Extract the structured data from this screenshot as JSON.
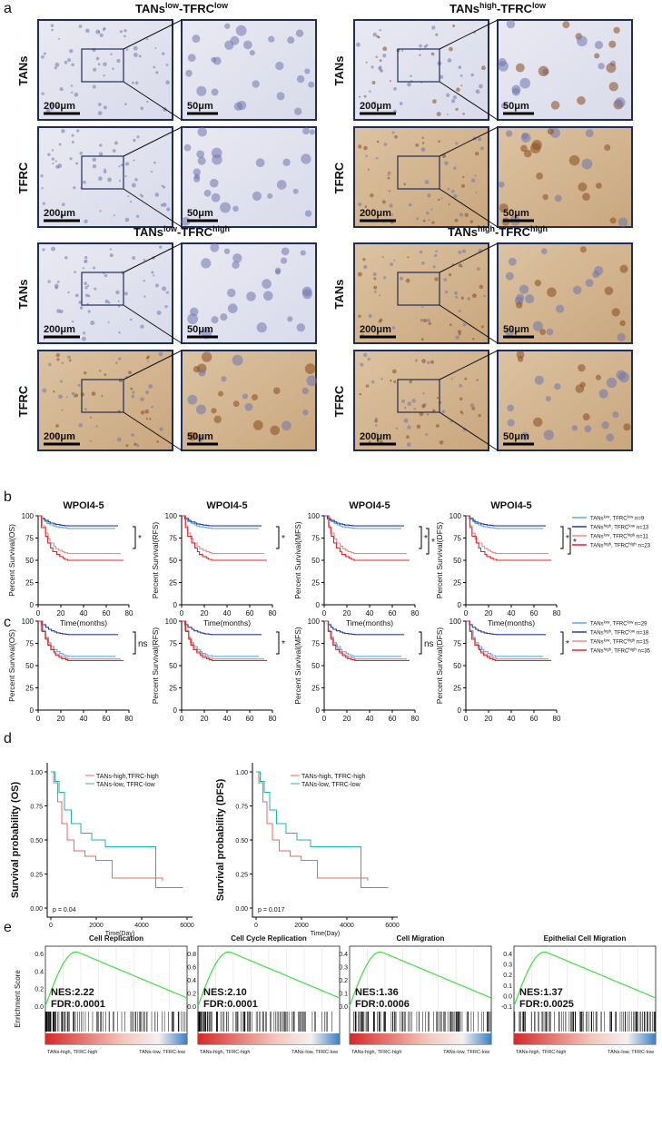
{
  "panel_a": {
    "label": "a",
    "groups": [
      {
        "title_parts": [
          "TANs",
          "low",
          "-TFRC",
          "low"
        ],
        "rows": [
          {
            "label": "TANs",
            "scale_low": "200μm",
            "scale_high": "50μm"
          },
          {
            "label": "TFRC",
            "scale_low": "200μm",
            "scale_high": "50μm"
          }
        ]
      },
      {
        "title_parts": [
          "TANs",
          "high",
          "-TFRC",
          "low"
        ],
        "rows": [
          {
            "label": "TANs",
            "scale_low": "200μm",
            "scale_high": "50μm"
          },
          {
            "label": "TFRC",
            "scale_low": "200μm",
            "scale_high": "50μm"
          }
        ]
      },
      {
        "title_parts": [
          "TANs",
          "low",
          "-TFRC",
          "high"
        ],
        "rows": [
          {
            "label": "TANs",
            "scale_low": "200μm",
            "scale_high": "50μm"
          },
          {
            "label": "TFRC",
            "scale_low": "200μm",
            "scale_high": "50μm"
          }
        ]
      },
      {
        "title_parts": [
          "TANs",
          "high",
          "-TFRC",
          "high"
        ],
        "rows": [
          {
            "label": "TANs",
            "scale_low": "200μm",
            "scale_high": "50μm"
          },
          {
            "label": "TFRC",
            "scale_low": "200μm",
            "scale_high": "50μm"
          }
        ]
      }
    ]
  },
  "panel_b": {
    "label": "b",
    "yticks": [
      0,
      25,
      50,
      75,
      100
    ],
    "xticks": [
      0,
      20,
      40,
      60,
      80
    ],
    "xlabel": "Time(months)",
    "plots": [
      {
        "title": "WPOI4-5",
        "ylabel": "Percent Survival(OS)",
        "sig": [
          "*"
        ]
      },
      {
        "title": "WPOI4-5",
        "ylabel": "Percent Survival(RFS)",
        "sig": [
          "*"
        ]
      },
      {
        "title": "WPOI4-5",
        "ylabel": "Percent Survival(MFS)",
        "sig": [
          "*",
          "*"
        ]
      },
      {
        "title": "WPOI4-5",
        "ylabel": "Percent Survival(DFS)",
        "sig": [
          "*",
          "*"
        ]
      }
    ],
    "legend": [
      {
        "a": "TANs",
        "as": "low",
        "b": ", TFRC",
        "bs": "low",
        "n": " n=9"
      },
      {
        "a": "TANs",
        "as": "high",
        "b": ", TFRC",
        "bs": "low",
        "n": " n=13"
      },
      {
        "a": "TANs",
        "as": "low",
        "b": ", TFRC",
        "bs": "high",
        "n": " n=11"
      },
      {
        "a": "TANs",
        "as": "high",
        "b": ", TFRC",
        "bs": "high",
        "n": " n=23"
      }
    ]
  },
  "panel_c": {
    "label": "c",
    "yticks": [
      0,
      25,
      50,
      75,
      100
    ],
    "xticks": [
      0,
      20,
      40,
      60,
      80
    ],
    "plots": [
      {
        "ylabel": "Percent Survival(OS)",
        "sig": [
          "ns"
        ]
      },
      {
        "ylabel": "Percent Survival(RFS)",
        "sig": [
          "*"
        ]
      },
      {
        "ylabel": "Percent Survival(MFS)",
        "sig": [
          "ns"
        ]
      },
      {
        "ylabel": "Percent Survival(DFS)",
        "sig": [
          "*"
        ]
      }
    ],
    "legend": [
      {
        "a": "TANs",
        "as": "low",
        "b": ", TFRC",
        "bs": "low",
        "n": " n=29"
      },
      {
        "a": "TANs",
        "as": "high",
        "b": ", TFRC",
        "bs": "low",
        "n": " n=18"
      },
      {
        "a": "TANs",
        "as": "low",
        "b": ", TFRC",
        "bs": "high",
        "n": " n=15"
      },
      {
        "a": "TANs",
        "as": "high",
        "b": ", TFRC",
        "bs": "high",
        "n": " n=35"
      }
    ]
  },
  "panel_d": {
    "label": "d",
    "yticks": [
      "0.00",
      "0.25",
      "0.50",
      "0.75",
      "1.00"
    ],
    "xticks": [
      0,
      2000,
      4000,
      6000
    ],
    "xlabel": "Time(Day)",
    "plots": [
      {
        "ylabel": "Survival probability (OS)",
        "p": "p = 0.04",
        "legend": [
          "TANs-high,TFRC-high",
          "TANs-low, TFRC-low"
        ]
      },
      {
        "ylabel": "Survival probability (DFS)",
        "p": "p = 0.017",
        "legend": [
          "TANs-high, TFRC-high",
          "TANs-low, TFRC-low"
        ]
      }
    ]
  },
  "panel_e": {
    "label": "e",
    "ylabel": "Enrichment Score",
    "plots": [
      {
        "title": "Cell Replication",
        "yticks": [
          "0.6",
          "0.4",
          "0.2",
          "0.0"
        ],
        "nes": "NES:2.22",
        "fdr": "FDR:0.0001",
        "left": "TANs-high, TFRC-high",
        "right": "TANs-low, TFRC-low"
      },
      {
        "title": "Cell Cycle Replication",
        "yticks": [
          "0.8",
          "0.6",
          "0.4",
          "0.2",
          "0.0"
        ],
        "nes": "NES:2.10",
        "fdr": "FDR:0.0001",
        "left": "TANs-high, TFRC-high",
        "right": "TANs-low, TFRC-low"
      },
      {
        "title": "Cell Migration",
        "yticks": [
          "0.4",
          "0.3",
          "0.2",
          "0.1",
          "0.0"
        ],
        "nes": "NES:1.36",
        "fdr": "FDR:0.0006",
        "left": "TANs-high, TFRC-high",
        "right": "TANs-low, TFRC-low"
      },
      {
        "title": "Epithelial Cell Migration",
        "yticks": [
          "0.4",
          "0.3",
          "0.2",
          "0.1",
          "0.0",
          "-0.1"
        ],
        "nes": "NES:1.37",
        "fdr": "FDR:0.0025",
        "left": "TANs-high, TFRC-high",
        "right": "TANs-low, TFRC-low"
      }
    ]
  }
}
